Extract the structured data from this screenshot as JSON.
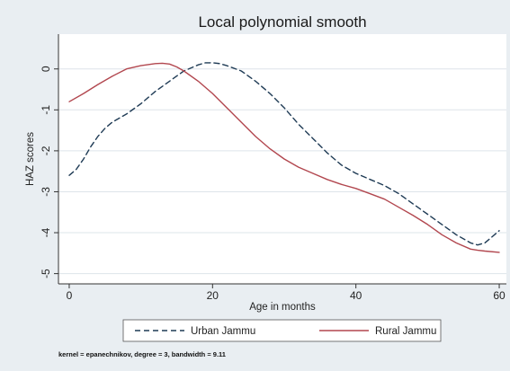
{
  "chart_data": {
    "type": "line",
    "title": "Local polynomial smooth",
    "xlabel": "Age in months",
    "ylabel": "HAZ scores",
    "xlim": [
      -1.5,
      61
    ],
    "ylim": [
      -5.25,
      0.85
    ],
    "x_ticks": [
      "0",
      "20",
      "40",
      "60"
    ],
    "y_ticks": [
      "0",
      "-1",
      "-2",
      "-3",
      "-4",
      "-5"
    ],
    "grid": "horizontal",
    "legend_position": "bottom",
    "series": [
      {
        "name": "Urban Jammu",
        "color": "#1f3b55",
        "dash": "dashed",
        "x": [
          0,
          1,
          2,
          3,
          4,
          5,
          6,
          8,
          10,
          12,
          14,
          16,
          18,
          19,
          20,
          21,
          22,
          24,
          26,
          28,
          30,
          32,
          34,
          36,
          38,
          40,
          42,
          44,
          46,
          48,
          50,
          52,
          54,
          56,
          57,
          58,
          59,
          60
        ],
        "y": [
          -2.6,
          -2.45,
          -2.2,
          -1.9,
          -1.65,
          -1.45,
          -1.3,
          -1.1,
          -0.85,
          -0.55,
          -0.3,
          -0.05,
          0.1,
          0.15,
          0.15,
          0.13,
          0.08,
          -0.05,
          -0.3,
          -0.6,
          -0.95,
          -1.35,
          -1.7,
          -2.05,
          -2.35,
          -2.55,
          -2.7,
          -2.85,
          -3.05,
          -3.3,
          -3.55,
          -3.8,
          -4.05,
          -4.25,
          -4.3,
          -4.25,
          -4.1,
          -3.95
        ]
      },
      {
        "name": "Rural Jammu",
        "color": "#b2474f",
        "dash": "solid",
        "x": [
          0,
          2,
          4,
          6,
          8,
          10,
          12,
          13,
          14,
          15,
          16,
          18,
          20,
          22,
          24,
          26,
          28,
          30,
          32,
          34,
          36,
          38,
          40,
          42,
          44,
          46,
          48,
          50,
          52,
          54,
          56,
          57,
          58,
          60
        ],
        "y": [
          -0.8,
          -0.6,
          -0.38,
          -0.18,
          0.0,
          0.08,
          0.13,
          0.14,
          0.12,
          0.05,
          -0.05,
          -0.3,
          -0.6,
          -0.95,
          -1.3,
          -1.65,
          -1.95,
          -2.2,
          -2.4,
          -2.55,
          -2.7,
          -2.82,
          -2.92,
          -3.05,
          -3.18,
          -3.38,
          -3.58,
          -3.8,
          -4.05,
          -4.25,
          -4.4,
          -4.43,
          -4.45,
          -4.48
        ]
      }
    ]
  },
  "legend": {
    "urban_label": "Urban Jammu",
    "rural_label": "Rural Jammu"
  },
  "footnote": "kernel = epanechnikov, degree = 3, bandwidth = 9.11"
}
